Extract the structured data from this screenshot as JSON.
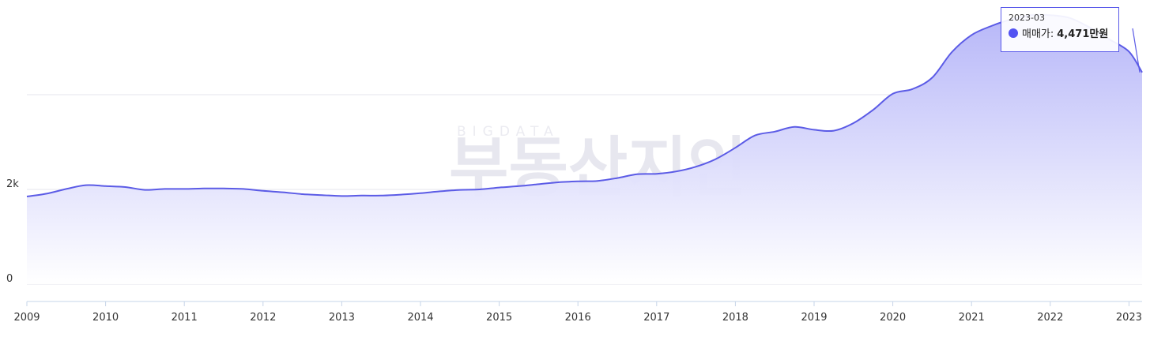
{
  "watermark": {
    "top": "BIGDATA",
    "main": "부동산지인"
  },
  "tooltip": {
    "date": "2023-03",
    "series_label": "매매가:",
    "value_label": "4,471만원"
  },
  "colors": {
    "line": "#5b5be6",
    "fill_top": "#b3b3f8",
    "fill_bottom": "#ffffff",
    "grid": "#e6e6ee",
    "axis": "#c6d4e8",
    "marker": "#5353f2"
  },
  "chart_data": {
    "type": "area",
    "series": [
      {
        "name": "매매가",
        "unit": "만원",
        "points": [
          [
            "2009-01",
            1850
          ],
          [
            "2009-04",
            1910
          ],
          [
            "2009-07",
            2010
          ],
          [
            "2009-10",
            2090
          ],
          [
            "2010-01",
            2070
          ],
          [
            "2010-04",
            2050
          ],
          [
            "2010-07",
            1990
          ],
          [
            "2010-10",
            2010
          ],
          [
            "2011-01",
            2010
          ],
          [
            "2011-04",
            2020
          ],
          [
            "2011-07",
            2020
          ],
          [
            "2011-10",
            2010
          ],
          [
            "2012-01",
            1970
          ],
          [
            "2012-04",
            1940
          ],
          [
            "2012-07",
            1900
          ],
          [
            "2012-10",
            1880
          ],
          [
            "2013-01",
            1860
          ],
          [
            "2013-04",
            1870
          ],
          [
            "2013-07",
            1870
          ],
          [
            "2013-10",
            1890
          ],
          [
            "2014-01",
            1920
          ],
          [
            "2014-04",
            1960
          ],
          [
            "2014-07",
            1990
          ],
          [
            "2014-10",
            2000
          ],
          [
            "2015-01",
            2040
          ],
          [
            "2015-04",
            2070
          ],
          [
            "2015-07",
            2110
          ],
          [
            "2015-10",
            2150
          ],
          [
            "2016-01",
            2170
          ],
          [
            "2016-04",
            2180
          ],
          [
            "2016-07",
            2240
          ],
          [
            "2016-10",
            2320
          ],
          [
            "2017-01",
            2330
          ],
          [
            "2017-04",
            2380
          ],
          [
            "2017-07",
            2480
          ],
          [
            "2017-10",
            2640
          ],
          [
            "2018-01",
            2880
          ],
          [
            "2018-04",
            3140
          ],
          [
            "2018-07",
            3220
          ],
          [
            "2018-10",
            3320
          ],
          [
            "2019-01",
            3260
          ],
          [
            "2019-04",
            3240
          ],
          [
            "2019-07",
            3400
          ],
          [
            "2019-10",
            3680
          ],
          [
            "2020-01",
            4020
          ],
          [
            "2020-04",
            4120
          ],
          [
            "2020-07",
            4360
          ],
          [
            "2020-10",
            4900
          ],
          [
            "2021-01",
            5260
          ],
          [
            "2021-04",
            5450
          ],
          [
            "2021-07",
            5590
          ],
          [
            "2021-10",
            5680
          ],
          [
            "2022-01",
            5680
          ],
          [
            "2022-04",
            5620
          ],
          [
            "2022-07",
            5420
          ],
          [
            "2022-10",
            5170
          ],
          [
            "2023-01",
            4910
          ],
          [
            "2023-03",
            4471
          ]
        ]
      }
    ],
    "x_tick_labels": [
      "2009",
      "2010",
      "2011",
      "2012",
      "2013",
      "2014",
      "2015",
      "2016",
      "2017",
      "2018",
      "2019",
      "2020",
      "2021",
      "2022",
      "2023"
    ],
    "y_tick_labels": [
      {
        "value": 0,
        "label": "0"
      },
      {
        "value": 2000,
        "label": "2k"
      }
    ],
    "ylim": [
      0,
      6000
    ],
    "xlim": [
      "2009-01",
      "2023-03"
    ],
    "grid": true,
    "legend": "none",
    "highlight": {
      "date": "2023-03",
      "value": 4471
    }
  }
}
